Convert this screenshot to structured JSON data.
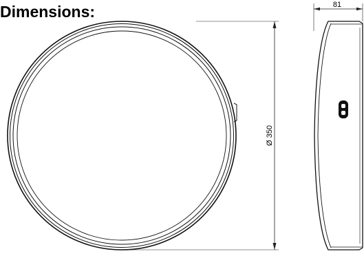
{
  "title": "Dimensions:",
  "dimensions": {
    "diameter": "Ø 350",
    "depth": "81"
  }
}
